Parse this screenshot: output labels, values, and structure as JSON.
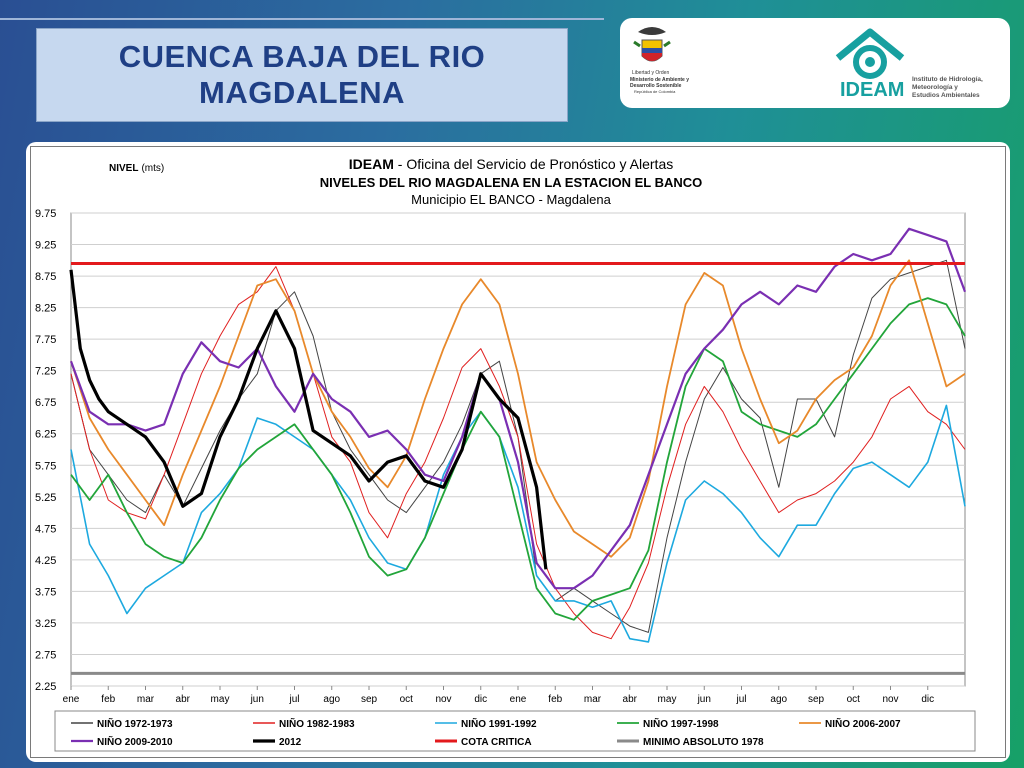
{
  "slide": {
    "title_line1": "CUENCA  BAJA  DEL RIO",
    "title_line2": "MAGDALENA"
  },
  "logos": {
    "ministry_text": [
      "Libertad y Orden",
      "Ministerio de Ambiente y",
      "Desarrollo Sostenible",
      "República de Colombia"
    ],
    "ideam_name": "IDEAM",
    "ideam_text": [
      "Instituto de Hidrología,",
      "Meteorología y",
      "Estudios Ambientales"
    ]
  },
  "chart_data": {
    "type": "line",
    "ylabel_bold": "NIVEL",
    "ylabel_unit": "(mts)",
    "title_org": "IDEAM",
    "title_rest": " - Oficina del Servicio de Pronóstico y Alertas",
    "title2": "NIVELES DEL RIO MAGDALENA EN LA ESTACION EL BANCO",
    "subtitle": "Municipio EL BANCO - Magdalena",
    "ylim": [
      2.25,
      9.75
    ],
    "yticks": [
      "2.25",
      "2.75",
      "3.25",
      "3.75",
      "4.25",
      "4.75",
      "5.25",
      "5.75",
      "6.25",
      "6.75",
      "7.25",
      "7.75",
      "8.25",
      "8.75",
      "9.25",
      "9.75"
    ],
    "xlim": [
      0,
      24
    ],
    "xticks": [
      "ene",
      "feb",
      "mar",
      "abr",
      "may",
      "jun",
      "jul",
      "ago",
      "sep",
      "oct",
      "nov",
      "dic",
      "ene",
      "feb",
      "mar",
      "abr",
      "may",
      "jun",
      "jul",
      "ago",
      "sep",
      "oct",
      "nov",
      "dic"
    ],
    "grid": true,
    "legend_position": "bottom",
    "series": [
      {
        "name": "NIÑO 1972-1973",
        "color": "#444444",
        "width": 1,
        "x": [
          0,
          0.5,
          1,
          1.5,
          2,
          2.5,
          3,
          3.5,
          4,
          4.5,
          5,
          5.5,
          6,
          6.5,
          7,
          7.5,
          8,
          8.5,
          9,
          9.5,
          10,
          10.5,
          11,
          11.5,
          12,
          12.5,
          13,
          13.5,
          14,
          14.5,
          15,
          15.5,
          16,
          16.5,
          17,
          17.5,
          18,
          18.5,
          19,
          19.5,
          20,
          20.5,
          21,
          21.5,
          22,
          22.5,
          23,
          23.5,
          24
        ],
        "y": [
          7.2,
          6.0,
          5.6,
          5.2,
          5.0,
          5.6,
          5.1,
          5.7,
          6.3,
          6.8,
          7.2,
          8.2,
          8.5,
          7.8,
          6.6,
          6.0,
          5.6,
          5.2,
          5.0,
          5.4,
          5.8,
          6.4,
          7.2,
          7.4,
          6.2,
          4.0,
          3.6,
          3.8,
          3.6,
          3.4,
          3.2,
          3.1,
          4.6,
          5.8,
          6.8,
          7.3,
          6.8,
          6.5,
          5.4,
          6.8,
          6.8,
          6.2,
          7.5,
          8.4,
          8.7,
          8.8,
          8.9,
          9.0,
          7.6
        ]
      },
      {
        "name": "NIÑO 1982-1983",
        "color": "#e02020",
        "width": 1,
        "x": [
          0,
          0.5,
          1,
          1.5,
          2,
          2.5,
          3,
          3.5,
          4,
          4.5,
          5,
          5.5,
          6,
          6.5,
          7,
          7.5,
          8,
          8.5,
          9,
          9.5,
          10,
          10.5,
          11,
          11.5,
          12,
          12.5,
          13,
          13.5,
          14,
          14.5,
          15,
          15.5,
          16,
          16.5,
          17,
          17.5,
          18,
          18.5,
          19,
          19.5,
          20,
          20.5,
          21,
          21.5,
          22,
          22.5,
          23,
          23.5,
          24
        ],
        "y": [
          7.2,
          6.0,
          5.2,
          5.0,
          4.9,
          5.6,
          6.4,
          7.2,
          7.8,
          8.3,
          8.5,
          8.9,
          8.2,
          7.2,
          6.2,
          5.8,
          5.0,
          4.6,
          5.3,
          5.8,
          6.5,
          7.3,
          7.6,
          7.0,
          6.2,
          4.5,
          3.8,
          3.4,
          3.1,
          3.0,
          3.5,
          4.2,
          5.4,
          6.4,
          7.0,
          6.6,
          6.0,
          5.5,
          5.0,
          5.2,
          5.3,
          5.5,
          5.8,
          6.2,
          6.8,
          7.0,
          6.6,
          6.4,
          6.0
        ]
      },
      {
        "name": "NIÑO 1991-1992",
        "color": "#1da9df",
        "width": 1.6,
        "x": [
          0,
          0.5,
          1,
          1.5,
          2,
          2.5,
          3,
          3.5,
          4,
          4.5,
          5,
          5.5,
          6,
          6.5,
          7,
          7.5,
          8,
          8.5,
          9,
          9.5,
          10,
          10.5,
          11,
          11.5,
          12,
          12.5,
          13,
          13.5,
          14,
          14.5,
          15,
          15.5,
          16,
          16.5,
          17,
          17.5,
          18,
          18.5,
          19,
          19.5,
          20,
          20.5,
          21,
          21.5,
          22,
          22.5,
          23,
          23.5,
          24
        ],
        "y": [
          6.0,
          4.5,
          4.0,
          3.4,
          3.8,
          4.0,
          4.2,
          5.0,
          5.3,
          5.7,
          6.5,
          6.4,
          6.2,
          6.0,
          5.6,
          5.2,
          4.6,
          4.2,
          4.1,
          4.6,
          5.6,
          6.2,
          6.6,
          6.2,
          5.4,
          4.0,
          3.6,
          3.6,
          3.5,
          3.6,
          3.0,
          2.95,
          4.2,
          5.2,
          5.5,
          5.3,
          5.0,
          4.6,
          4.3,
          4.8,
          4.8,
          5.3,
          5.7,
          5.8,
          5.6,
          5.4,
          5.8,
          6.7,
          5.1
        ]
      },
      {
        "name": "NIÑO 1997-1998",
        "color": "#22a53a",
        "width": 1.8,
        "x": [
          0,
          0.5,
          1,
          1.5,
          2,
          2.5,
          3,
          3.5,
          4,
          4.5,
          5,
          5.5,
          6,
          6.5,
          7,
          7.5,
          8,
          8.5,
          9,
          9.5,
          10,
          10.5,
          11,
          11.5,
          12,
          12.5,
          13,
          13.5,
          14,
          14.5,
          15,
          15.5,
          16,
          16.5,
          17,
          17.5,
          18,
          18.5,
          19,
          19.5,
          20,
          20.5,
          21,
          21.5,
          22,
          22.5,
          23,
          23.5,
          24
        ],
        "y": [
          5.6,
          5.2,
          5.6,
          5.0,
          4.5,
          4.3,
          4.2,
          4.6,
          5.2,
          5.7,
          6.0,
          6.2,
          6.4,
          6.0,
          5.6,
          5.0,
          4.3,
          4.0,
          4.1,
          4.6,
          5.3,
          6.0,
          6.6,
          6.2,
          5.0,
          3.8,
          3.4,
          3.3,
          3.6,
          3.7,
          3.8,
          4.4,
          5.8,
          7.0,
          7.6,
          7.4,
          6.6,
          6.4,
          6.3,
          6.2,
          6.4,
          6.8,
          7.2,
          7.6,
          8.0,
          8.3,
          8.4,
          8.3,
          7.8
        ]
      },
      {
        "name": "NIÑO 2006-2007",
        "color": "#e8892b",
        "width": 1.8,
        "x": [
          0,
          0.5,
          1,
          1.5,
          2,
          2.5,
          3,
          3.5,
          4,
          4.5,
          5,
          5.5,
          6,
          6.5,
          7,
          7.5,
          8,
          8.5,
          9,
          9.5,
          10,
          10.5,
          11,
          11.5,
          12,
          12.5,
          13,
          13.5,
          14,
          14.5,
          15,
          15.5,
          16,
          16.5,
          17,
          17.5,
          18,
          18.5,
          19,
          19.5,
          20,
          20.5,
          21,
          21.5,
          22,
          22.5,
          23,
          23.5,
          24
        ],
        "y": [
          7.4,
          6.5,
          6.0,
          5.6,
          5.2,
          4.8,
          5.6,
          6.3,
          7.0,
          7.8,
          8.6,
          8.7,
          8.2,
          7.2,
          6.6,
          6.2,
          5.7,
          5.4,
          5.9,
          6.8,
          7.6,
          8.3,
          8.7,
          8.3,
          7.2,
          5.8,
          5.2,
          4.7,
          4.5,
          4.3,
          4.6,
          5.5,
          7.0,
          8.3,
          8.8,
          8.6,
          7.6,
          6.8,
          6.1,
          6.3,
          6.8,
          7.1,
          7.3,
          7.8,
          8.6,
          9.0,
          8.0,
          7.0,
          7.2
        ]
      },
      {
        "name": "NIÑO 2009-2010",
        "color": "#7a2fb2",
        "width": 2.2,
        "x": [
          0,
          0.5,
          1,
          1.5,
          2,
          2.5,
          3,
          3.5,
          4,
          4.5,
          5,
          5.5,
          6,
          6.5,
          7,
          7.5,
          8,
          8.5,
          9,
          9.5,
          10,
          10.5,
          11,
          11.5,
          12,
          12.5,
          13,
          13.5,
          14,
          14.5,
          15,
          15.5,
          16,
          16.5,
          17,
          17.5,
          18,
          18.5,
          19,
          19.5,
          20,
          20.5,
          21,
          21.5,
          22,
          22.5,
          23,
          23.5,
          24
        ],
        "y": [
          7.4,
          6.6,
          6.4,
          6.4,
          6.3,
          6.4,
          7.2,
          7.7,
          7.4,
          7.3,
          7.6,
          7.0,
          6.6,
          7.2,
          6.8,
          6.6,
          6.2,
          6.3,
          6.0,
          5.6,
          5.5,
          6.2,
          7.2,
          6.8,
          5.8,
          4.2,
          3.8,
          3.8,
          4.0,
          4.4,
          4.8,
          5.6,
          6.4,
          7.2,
          7.6,
          7.9,
          8.3,
          8.5,
          8.3,
          8.6,
          8.5,
          8.9,
          9.1,
          9.0,
          9.1,
          9.5,
          9.4,
          9.3,
          8.5
        ]
      },
      {
        "name": "2012",
        "color": "#000000",
        "width": 3.2,
        "x": [
          0,
          0.25,
          0.5,
          0.75,
          1,
          1.5,
          2,
          2.5,
          3,
          3.5,
          4,
          4.5,
          5,
          5.5,
          6,
          6.5,
          7,
          7.5,
          8,
          8.5,
          9,
          9.5,
          10,
          10.5,
          11,
          11.5,
          12,
          12.5,
          12.75
        ],
        "y": [
          8.85,
          7.6,
          7.1,
          6.8,
          6.6,
          6.4,
          6.2,
          5.8,
          5.1,
          5.3,
          6.2,
          6.8,
          7.6,
          8.2,
          7.6,
          6.3,
          6.1,
          5.9,
          5.5,
          5.8,
          5.9,
          5.5,
          5.4,
          6.0,
          7.2,
          6.8,
          6.5,
          5.4,
          4.1
        ]
      },
      {
        "name": "COTA CRITICA",
        "color": "#e3191c",
        "width": 3,
        "x": [
          0,
          24
        ],
        "y": [
          8.95,
          8.95
        ]
      },
      {
        "name": "MINIMO ABSOLUTO 1978",
        "color": "#8a8a8a",
        "width": 3,
        "x": [
          0,
          24
        ],
        "y": [
          2.45,
          2.45
        ]
      }
    ]
  }
}
